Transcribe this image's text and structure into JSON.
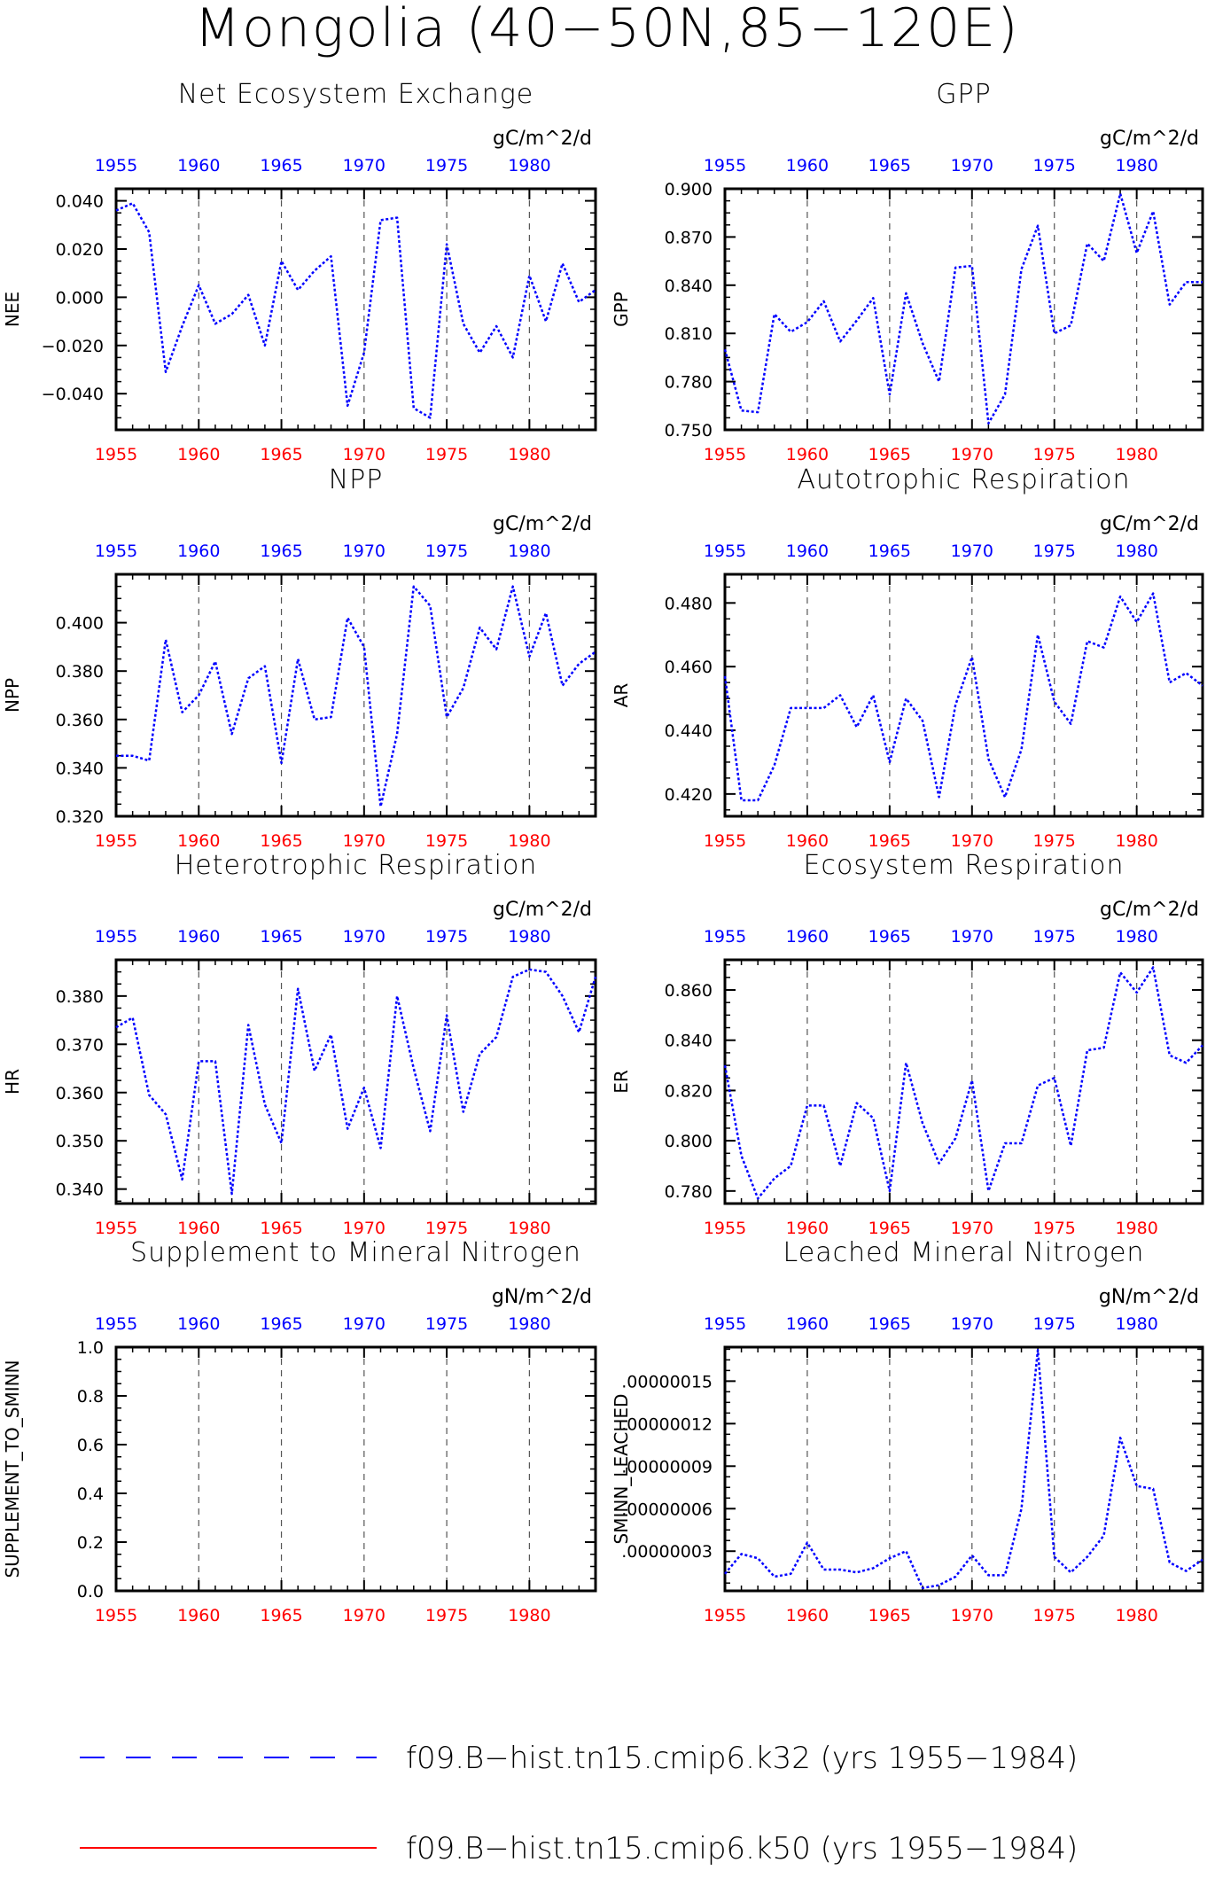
{
  "title": "Mongolia (40−50N,85−120E)",
  "colors": {
    "series_blue": "#0000ff",
    "series_red": "#ff0000",
    "top_ticks": "#0000ff",
    "bottom_ticks": "#ff0000",
    "frame": "#000000",
    "grid": "#555555"
  },
  "legend": [
    {
      "label": "f09.B−hist.tn15.cmip6.k32 (yrs 1955−1984)",
      "color": "#0000ff",
      "style": "dashed"
    },
    {
      "label": "f09.B−hist.tn15.cmip6.k50 (yrs 1955−1984)",
      "color": "#ff0000",
      "style": "solid"
    }
  ],
  "chart_data": [
    {
      "type": "line",
      "title": "Net Ecosystem Exchange",
      "units": "gC/m^2/d",
      "ylabel": "NEE",
      "xlim": [
        1955,
        1984
      ],
      "ylim": [
        -0.055,
        0.045
      ],
      "yticks": [
        -0.04,
        -0.02,
        0.0,
        0.02,
        0.04
      ],
      "ytick_labels": [
        "−0.040",
        "−0.020",
        "0.000",
        "0.020",
        "0.040"
      ],
      "xticks": [
        1955,
        1960,
        1965,
        1970,
        1975,
        1980
      ],
      "grid_x": [
        1960,
        1965,
        1970,
        1975,
        1980
      ],
      "x": [
        1955,
        1956,
        1957,
        1958,
        1959,
        1960,
        1961,
        1962,
        1963,
        1964,
        1965,
        1966,
        1967,
        1968,
        1969,
        1970,
        1971,
        1972,
        1973,
        1974,
        1975,
        1976,
        1977,
        1978,
        1979,
        1980,
        1981,
        1982,
        1983,
        1984
      ],
      "series": [
        {
          "color": "#0000ff",
          "values": [
            0.036,
            0.039,
            0.027,
            -0.031,
            -0.012,
            0.005,
            -0.011,
            -0.007,
            0.001,
            -0.02,
            0.015,
            0.003,
            0.011,
            0.017,
            -0.045,
            -0.023,
            0.032,
            0.033,
            -0.046,
            -0.05,
            0.022,
            -0.011,
            -0.023,
            -0.012,
            -0.025,
            0.009,
            -0.01,
            0.014,
            -0.002,
            0.003
          ]
        }
      ]
    },
    {
      "type": "line",
      "title": "GPP",
      "units": "gC/m^2/d",
      "ylabel": "GPP",
      "xlim": [
        1955,
        1984
      ],
      "ylim": [
        0.75,
        0.9
      ],
      "yticks": [
        0.75,
        0.78,
        0.81,
        0.84,
        0.87,
        0.9
      ],
      "ytick_labels": [
        "0.750",
        "0.780",
        "0.810",
        "0.840",
        "0.870",
        "0.900"
      ],
      "xticks": [
        1955,
        1960,
        1965,
        1970,
        1975,
        1980
      ],
      "grid_x": [
        1960,
        1965,
        1970,
        1975,
        1980
      ],
      "x": [
        1955,
        1956,
        1957,
        1958,
        1959,
        1960,
        1961,
        1962,
        1963,
        1964,
        1965,
        1966,
        1967,
        1968,
        1969,
        1970,
        1971,
        1972,
        1973,
        1974,
        1975,
        1976,
        1977,
        1978,
        1979,
        1980,
        1981,
        1982,
        1983,
        1984
      ],
      "series": [
        {
          "color": "#0000ff",
          "values": [
            0.8,
            0.762,
            0.761,
            0.822,
            0.811,
            0.817,
            0.83,
            0.805,
            0.818,
            0.832,
            0.772,
            0.835,
            0.804,
            0.78,
            0.851,
            0.852,
            0.754,
            0.772,
            0.85,
            0.877,
            0.81,
            0.815,
            0.866,
            0.855,
            0.897,
            0.86,
            0.886,
            0.828,
            0.842,
            0.842
          ]
        }
      ]
    },
    {
      "type": "line",
      "title": "NPP",
      "units": "gC/m^2/d",
      "ylabel": "NPP",
      "xlim": [
        1955,
        1984
      ],
      "ylim": [
        0.32,
        0.42
      ],
      "yticks": [
        0.32,
        0.34,
        0.36,
        0.38,
        0.4
      ],
      "ytick_labels": [
        "0.320",
        "0.340",
        "0.360",
        "0.380",
        "0.400"
      ],
      "xticks": [
        1955,
        1960,
        1965,
        1970,
        1975,
        1980
      ],
      "grid_x": [
        1960,
        1965,
        1970,
        1975,
        1980
      ],
      "x": [
        1955,
        1956,
        1957,
        1958,
        1959,
        1960,
        1961,
        1962,
        1963,
        1964,
        1965,
        1966,
        1967,
        1968,
        1969,
        1970,
        1971,
        1972,
        1973,
        1974,
        1975,
        1976,
        1977,
        1978,
        1979,
        1980,
        1981,
        1982,
        1983,
        1984
      ],
      "series": [
        {
          "color": "#0000ff",
          "values": [
            0.345,
            0.345,
            0.343,
            0.393,
            0.363,
            0.37,
            0.384,
            0.354,
            0.377,
            0.382,
            0.342,
            0.385,
            0.36,
            0.361,
            0.402,
            0.39,
            0.324,
            0.354,
            0.415,
            0.407,
            0.361,
            0.373,
            0.398,
            0.389,
            0.415,
            0.386,
            0.404,
            0.374,
            0.383,
            0.388
          ]
        }
      ]
    },
    {
      "type": "line",
      "title": "Autotrophic Respiration",
      "units": "gC/m^2/d",
      "ylabel": "AR",
      "xlim": [
        1955,
        1984
      ],
      "ylim": [
        0.413,
        0.489
      ],
      "yticks": [
        0.42,
        0.44,
        0.46,
        0.48
      ],
      "ytick_labels": [
        "0.420",
        "0.440",
        "0.460",
        "0.480"
      ],
      "xticks": [
        1955,
        1960,
        1965,
        1970,
        1975,
        1980
      ],
      "grid_x": [
        1960,
        1965,
        1970,
        1975,
        1980
      ],
      "x": [
        1955,
        1956,
        1957,
        1958,
        1959,
        1960,
        1961,
        1962,
        1963,
        1964,
        1965,
        1966,
        1967,
        1968,
        1969,
        1970,
        1971,
        1972,
        1973,
        1974,
        1975,
        1976,
        1977,
        1978,
        1979,
        1980,
        1981,
        1982,
        1983,
        1984
      ],
      "series": [
        {
          "color": "#0000ff",
          "values": [
            0.457,
            0.418,
            0.418,
            0.429,
            0.447,
            0.447,
            0.447,
            0.451,
            0.441,
            0.451,
            0.43,
            0.45,
            0.443,
            0.419,
            0.448,
            0.463,
            0.431,
            0.419,
            0.434,
            0.47,
            0.449,
            0.442,
            0.468,
            0.466,
            0.482,
            0.474,
            0.483,
            0.455,
            0.458,
            0.454
          ]
        }
      ]
    },
    {
      "type": "line",
      "title": "Heterotrophic Respiration",
      "units": "gC/m^2/d",
      "ylabel": "HR",
      "xlim": [
        1955,
        1984
      ],
      "ylim": [
        0.337,
        0.3875
      ],
      "yticks": [
        0.34,
        0.35,
        0.36,
        0.37,
        0.38
      ],
      "ytick_labels": [
        "0.340",
        "0.350",
        "0.360",
        "0.370",
        "0.380"
      ],
      "xticks": [
        1955,
        1960,
        1965,
        1970,
        1975,
        1980
      ],
      "grid_x": [
        1960,
        1965,
        1970,
        1975,
        1980
      ],
      "x": [
        1955,
        1956,
        1957,
        1958,
        1959,
        1960,
        1961,
        1962,
        1963,
        1964,
        1965,
        1966,
        1967,
        1968,
        1969,
        1970,
        1971,
        1972,
        1973,
        1974,
        1975,
        1976,
        1977,
        1978,
        1979,
        1980,
        1981,
        1982,
        1983,
        1984
      ],
      "series": [
        {
          "color": "#0000ff",
          "values": [
            0.3735,
            0.3755,
            0.3595,
            0.3555,
            0.342,
            0.3665,
            0.3665,
            0.339,
            0.374,
            0.3575,
            0.3495,
            0.3815,
            0.3645,
            0.372,
            0.3525,
            0.361,
            0.3485,
            0.38,
            0.365,
            0.352,
            0.376,
            0.356,
            0.368,
            0.3715,
            0.384,
            0.3855,
            0.385,
            0.38,
            0.3725,
            0.384
          ]
        }
      ]
    },
    {
      "type": "line",
      "title": "Ecosystem Respiration",
      "units": "gC/m^2/d",
      "ylabel": "ER",
      "xlim": [
        1955,
        1984
      ],
      "ylim": [
        0.775,
        0.872
      ],
      "yticks": [
        0.78,
        0.8,
        0.82,
        0.84,
        0.86
      ],
      "ytick_labels": [
        "0.780",
        "0.800",
        "0.820",
        "0.840",
        "0.860"
      ],
      "xticks": [
        1955,
        1960,
        1965,
        1970,
        1975,
        1980
      ],
      "grid_x": [
        1960,
        1965,
        1970,
        1975,
        1980
      ],
      "x": [
        1955,
        1956,
        1957,
        1958,
        1959,
        1960,
        1961,
        1962,
        1963,
        1964,
        1965,
        1966,
        1967,
        1968,
        1969,
        1970,
        1971,
        1972,
        1973,
        1974,
        1975,
        1976,
        1977,
        1978,
        1979,
        1980,
        1981,
        1982,
        1983,
        1984
      ],
      "series": [
        {
          "color": "#0000ff",
          "values": [
            0.83,
            0.794,
            0.777,
            0.785,
            0.79,
            0.814,
            0.814,
            0.79,
            0.815,
            0.809,
            0.78,
            0.831,
            0.807,
            0.791,
            0.801,
            0.824,
            0.78,
            0.799,
            0.799,
            0.822,
            0.825,
            0.798,
            0.836,
            0.837,
            0.867,
            0.859,
            0.869,
            0.834,
            0.831,
            0.838
          ]
        }
      ]
    },
    {
      "type": "line",
      "title": "Supplement to Mineral Nitrogen",
      "units": "gN/m^2/d",
      "ylabel": "SUPPLEMENT_TO_SMINN",
      "xlim": [
        1955,
        1984
      ],
      "ylim": [
        0.0,
        1.0
      ],
      "yticks": [
        0.0,
        0.2,
        0.4,
        0.6,
        0.8,
        1.0
      ],
      "ytick_labels": [
        "0.0",
        "0.2",
        "0.4",
        "0.6",
        "0.8",
        "1.0"
      ],
      "xticks": [
        1955,
        1960,
        1965,
        1970,
        1975,
        1980
      ],
      "grid_x": [
        1960,
        1965,
        1970,
        1975,
        1980
      ],
      "x": [],
      "series": []
    },
    {
      "type": "line",
      "title": "Leached Mineral Nitrogen",
      "units": "gN/m^2/d",
      "ylabel": "SMINN_LEACHED",
      "xlim": [
        1955,
        1984
      ],
      "ylim": [
        2e-09,
        1.74e-07
      ],
      "yticks": [
        3e-08,
        6e-08,
        9e-08,
        1.2e-07,
        1.5e-07
      ],
      "ytick_labels": [
        ".00000003",
        ".00000006",
        ".00000009",
        ".00000012",
        ".00000015"
      ],
      "xticks": [
        1955,
        1960,
        1965,
        1970,
        1975,
        1980
      ],
      "grid_x": [
        1960,
        1965,
        1970,
        1975,
        1980
      ],
      "x": [
        1955,
        1956,
        1957,
        1958,
        1959,
        1960,
        1961,
        1962,
        1963,
        1964,
        1965,
        1966,
        1967,
        1968,
        1969,
        1970,
        1971,
        1972,
        1973,
        1974,
        1975,
        1976,
        1977,
        1978,
        1979,
        1980,
        1981,
        1982,
        1983,
        1984
      ],
      "series": [
        {
          "color": "#0000ff",
          "values": [
            1.4e-08,
            2.8e-08,
            2.5e-08,
            1.2e-08,
            1.4e-08,
            3.6e-08,
            1.7e-08,
            1.7e-08,
            1.5e-08,
            1.8e-08,
            2.5e-08,
            3e-08,
            4e-09,
            6e-09,
            1.2e-08,
            2.7e-08,
            1.3e-08,
            1.3e-08,
            6e-08,
            1.72e-07,
            2.6e-08,
            1.5e-08,
            2.6e-08,
            4.1e-08,
            1.1e-07,
            7.6e-08,
            7.4e-08,
            2.2e-08,
            1.6e-08,
            2.4e-08
          ]
        }
      ]
    }
  ]
}
